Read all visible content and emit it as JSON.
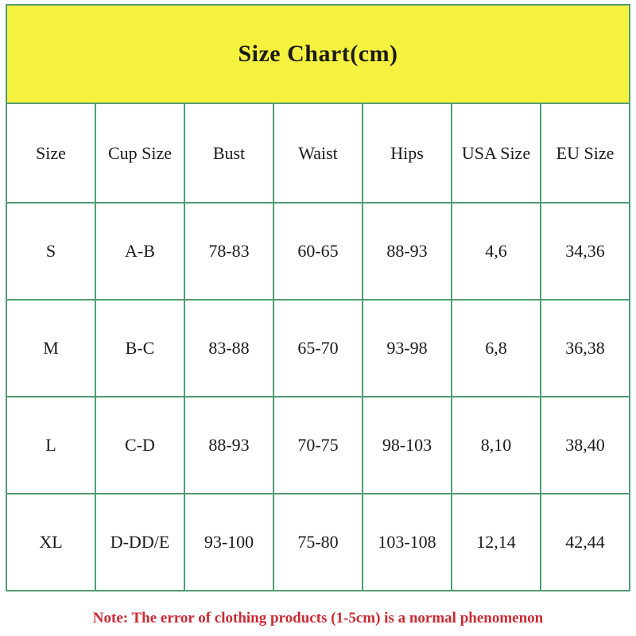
{
  "chart_data": {
    "type": "table",
    "title": "Size Chart(cm)",
    "columns": [
      "Size",
      "Cup Size",
      "Bust",
      "Waist",
      "Hips",
      "USA Size",
      "EU Size"
    ],
    "rows": [
      [
        "S",
        "A-B",
        "78-83",
        "60-65",
        "88-93",
        "4,6",
        "34,36"
      ],
      [
        "M",
        "B-C",
        "83-88",
        "65-70",
        "93-98",
        "6,8",
        "36,38"
      ],
      [
        "L",
        "C-D",
        "88-93",
        "70-75",
        "98-103",
        "8,10",
        "38,40"
      ],
      [
        "XL",
        "D-DD/E",
        "93-100",
        "75-80",
        "103-108",
        "12,14",
        "42,44"
      ]
    ],
    "note": "Note: The error of clothing products (1-5cm) is a normal phenomenon",
    "layout": {
      "grid": "on",
      "banner_position": "top",
      "note_position": "bottom"
    }
  },
  "colors": {
    "banner_yellow": "#f5f13f",
    "grid_green": "#4f9d72",
    "note_red": "#cb2a33",
    "text_black": "#1b1b1b",
    "background_white": "#ffffff"
  }
}
